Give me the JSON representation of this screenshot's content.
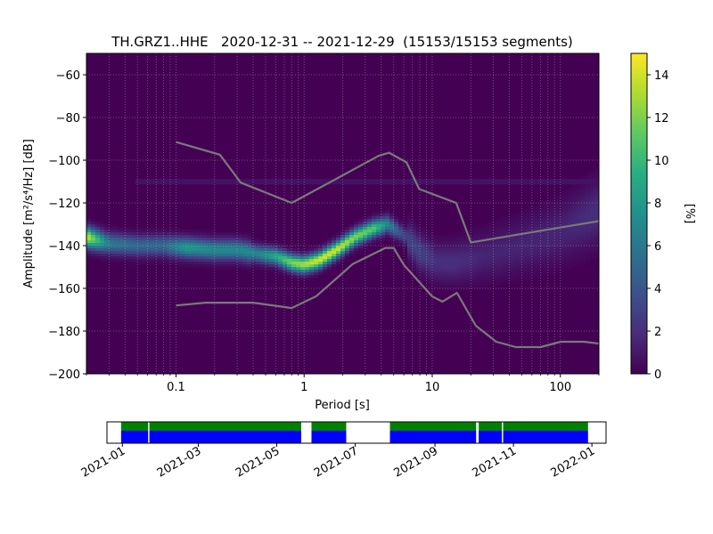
{
  "chart_data": [
    {
      "type": "heatmap",
      "title": "TH.GRZ1..HHE   2020-12-31 -- 2021-12-29  (15153/15153 segments)",
      "xlabel": "Period [s]",
      "ylabel": "Amplitude [m²/s⁴/Hz] [dB]",
      "x_scale": "log",
      "xlim": [
        0.02,
        200
      ],
      "ylim": [
        -200,
        -50
      ],
      "x_ticks": [
        {
          "value": 0.1,
          "label": "0.1"
        },
        {
          "value": 1,
          "label": "1"
        },
        {
          "value": 10,
          "label": "10"
        },
        {
          "value": 100,
          "label": "100"
        }
      ],
      "y_ticks": [
        {
          "value": -60,
          "label": "−60"
        },
        {
          "value": -80,
          "label": "−80"
        },
        {
          "value": -100,
          "label": "−100"
        },
        {
          "value": -120,
          "label": "−120"
        },
        {
          "value": -140,
          "label": "−140"
        },
        {
          "value": -160,
          "label": "−160"
        },
        {
          "value": -180,
          "label": "−180"
        },
        {
          "value": -200,
          "label": "−200"
        }
      ],
      "grid": true,
      "colormap": "viridis",
      "colorbar": {
        "label": "[%]",
        "range": [
          0,
          15
        ],
        "ticks": [
          {
            "value": 0,
            "label": "0"
          },
          {
            "value": 2,
            "label": "2"
          },
          {
            "value": 4,
            "label": "4"
          },
          {
            "value": 6,
            "label": "6"
          },
          {
            "value": 8,
            "label": "8"
          },
          {
            "value": 10,
            "label": "10"
          },
          {
            "value": 12,
            "label": "12"
          },
          {
            "value": 14,
            "label": "14"
          }
        ]
      },
      "density_ridge": [
        {
          "period": 0.02,
          "db": -136,
          "pct": 14
        },
        {
          "period": 0.03,
          "db": -139,
          "pct": 6
        },
        {
          "period": 0.05,
          "db": -140,
          "pct": 5
        },
        {
          "period": 0.08,
          "db": -140,
          "pct": 5
        },
        {
          "period": 0.12,
          "db": -141,
          "pct": 8
        },
        {
          "period": 0.2,
          "db": -142,
          "pct": 7
        },
        {
          "period": 0.3,
          "db": -142,
          "pct": 7
        },
        {
          "period": 0.45,
          "db": -144,
          "pct": 7
        },
        {
          "period": 0.6,
          "db": -145,
          "pct": 9
        },
        {
          "period": 0.8,
          "db": -148,
          "pct": 12
        },
        {
          "period": 1.0,
          "db": -149,
          "pct": 13
        },
        {
          "period": 1.3,
          "db": -147,
          "pct": 14
        },
        {
          "period": 1.8,
          "db": -142,
          "pct": 14
        },
        {
          "period": 2.5,
          "db": -136,
          "pct": 12
        },
        {
          "period": 3.5,
          "db": -132,
          "pct": 11
        },
        {
          "period": 4.5,
          "db": -130,
          "pct": 7
        },
        {
          "period": 6,
          "db": -135,
          "pct": 3
        },
        {
          "period": 8,
          "db": -143,
          "pct": 3
        },
        {
          "period": 11,
          "db": -148,
          "pct": 2
        },
        {
          "period": 15,
          "db": -148,
          "pct": 2
        },
        {
          "period": 25,
          "db": -145,
          "pct": 1.5
        },
        {
          "period": 50,
          "db": -140,
          "pct": 1.5
        },
        {
          "period": 100,
          "db": -134,
          "pct": 1.5
        },
        {
          "period": 200,
          "db": -124,
          "pct": 2
        }
      ],
      "noise_models": [
        {
          "points": [
            [
              0.1,
              -91.5
            ],
            [
              0.22,
              -97.4
            ],
            [
              0.32,
              -110.5
            ],
            [
              0.8,
              -120
            ],
            [
              3.8,
              -98
            ],
            [
              4.6,
              -96.5
            ],
            [
              6.3,
              -101
            ],
            [
              7.9,
              -113.5
            ],
            [
              15.4,
              -120
            ],
            [
              20,
              -138.5
            ],
            [
              354.8,
              -126
            ]
          ]
        },
        {
          "points": [
            [
              0.1,
              -168
            ],
            [
              0.17,
              -166.7
            ],
            [
              0.4,
              -166.7
            ],
            [
              0.8,
              -169.2
            ],
            [
              1.24,
              -163.7
            ],
            [
              2.4,
              -148.6
            ],
            [
              4.3,
              -141.1
            ],
            [
              5,
              -141.1
            ],
            [
              6,
              -149
            ],
            [
              10,
              -163.8
            ],
            [
              12,
              -166.2
            ],
            [
              15.6,
              -162.1
            ],
            [
              21.9,
              -177.5
            ],
            [
              31.6,
              -185
            ],
            [
              45,
              -187.5
            ],
            [
              70,
              -187.5
            ],
            [
              101,
              -185
            ],
            [
              154,
              -185
            ],
            [
              328,
              -187.5
            ]
          ]
        }
      ]
    },
    {
      "type": "bar",
      "role": "data-availability",
      "x_ticks": [
        "2021-01",
        "2021-03",
        "2021-05",
        "2021-07",
        "2021-09",
        "2021-11",
        "2022-01"
      ],
      "xlim": [
        "2020-12-20",
        "2022-01-12"
      ],
      "colors": {
        "upper": "#008000",
        "lower": "#0000ff"
      },
      "coverage_intervals": [
        [
          "2020-12-31",
          "2021-01-21"
        ],
        [
          "2021-01-22",
          "2021-05-20"
        ],
        [
          "2021-05-28",
          "2021-06-24"
        ],
        [
          "2021-07-28",
          "2021-10-03"
        ],
        [
          "2021-10-05",
          "2021-10-23"
        ],
        [
          "2021-10-24",
          "2021-12-29"
        ]
      ]
    }
  ]
}
